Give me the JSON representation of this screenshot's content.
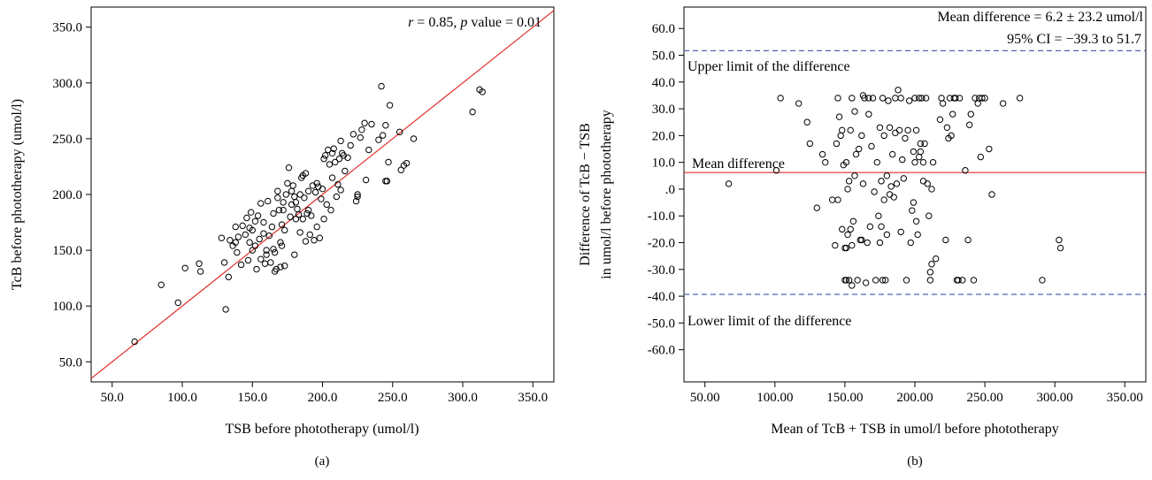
{
  "chart_data": [
    {
      "type": "scatter",
      "panel_label": "(a)",
      "annotation": "r = 0.85, p value = 0.01",
      "annotation_parts": {
        "r": "r",
        "r_rest": " = 0.85, ",
        "p": "p",
        "p_rest": " value = 0.01"
      },
      "xlabel": "TSB before phototherapy (umol/l)",
      "ylabel": "TcB before phototherapy (umol/l)",
      "xlim": [
        35,
        365
      ],
      "ylim": [
        32,
        368
      ],
      "x_ticks": [
        "50.0",
        "100.0",
        "150.0",
        "200.0",
        "250.0",
        "300.0",
        "350.0"
      ],
      "x_tick_values": [
        50,
        100,
        150,
        200,
        250,
        300,
        350
      ],
      "y_ticks": [
        "50.0",
        "100.0",
        "150.0",
        "200.0",
        "250.0",
        "300.0",
        "350.0"
      ],
      "y_tick_values": [
        50,
        100,
        150,
        200,
        250,
        300,
        350
      ],
      "reference_line": {
        "slope": 1.0,
        "intercept": 0,
        "color": "#e0302a"
      },
      "marker_color": "#000000",
      "points": [
        [
          66,
          68
        ],
        [
          85,
          119
        ],
        [
          97,
          103
        ],
        [
          102,
          134
        ],
        [
          112,
          138
        ],
        [
          113,
          131
        ],
        [
          128,
          161
        ],
        [
          130,
          139
        ],
        [
          131,
          97
        ],
        [
          133,
          126
        ],
        [
          134,
          159
        ],
        [
          136,
          154
        ],
        [
          138,
          157
        ],
        [
          138,
          171
        ],
        [
          139,
          148
        ],
        [
          140,
          162
        ],
        [
          142,
          137
        ],
        [
          143,
          172
        ],
        [
          145,
          164
        ],
        [
          146,
          179
        ],
        [
          147,
          141
        ],
        [
          148,
          157
        ],
        [
          148,
          170
        ],
        [
          149,
          184
        ],
        [
          150,
          150
        ],
        [
          150,
          168
        ],
        [
          152,
          154
        ],
        [
          152,
          176
        ],
        [
          153,
          133
        ],
        [
          154,
          181
        ],
        [
          155,
          160
        ],
        [
          156,
          142
        ],
        [
          156,
          192
        ],
        [
          158,
          165
        ],
        [
          158,
          175
        ],
        [
          159,
          138
        ],
        [
          160,
          150
        ],
        [
          160,
          146
        ],
        [
          161,
          194
        ],
        [
          162,
          163
        ],
        [
          163,
          139
        ],
        [
          164,
          171
        ],
        [
          165,
          151
        ],
        [
          165,
          183
        ],
        [
          166,
          131
        ],
        [
          166,
          148
        ],
        [
          167,
          133
        ],
        [
          168,
          197
        ],
        [
          168,
          203
        ],
        [
          169,
          186
        ],
        [
          170,
          135
        ],
        [
          170,
          157
        ],
        [
          171,
          154
        ],
        [
          171,
          173
        ],
        [
          172,
          186
        ],
        [
          172,
          193
        ],
        [
          173,
          136
        ],
        [
          173,
          168
        ],
        [
          174,
          200
        ],
        [
          175,
          210
        ],
        [
          176,
          224
        ],
        [
          177,
          180
        ],
        [
          178,
          191
        ],
        [
          178,
          203
        ],
        [
          179,
          208
        ],
        [
          180,
          146
        ],
        [
          180,
          198
        ],
        [
          181,
          193
        ],
        [
          181,
          178
        ],
        [
          182,
          187
        ],
        [
          183,
          182
        ],
        [
          184,
          166
        ],
        [
          184,
          200
        ],
        [
          185,
          215
        ],
        [
          186,
          178
        ],
        [
          186,
          217
        ],
        [
          187,
          197
        ],
        [
          188,
          219
        ],
        [
          188,
          158
        ],
        [
          189,
          183
        ],
        [
          190,
          186
        ],
        [
          190,
          203
        ],
        [
          191,
          164
        ],
        [
          192,
          181
        ],
        [
          193,
          208
        ],
        [
          194,
          159
        ],
        [
          195,
          202
        ],
        [
          196,
          210
        ],
        [
          196,
          171
        ],
        [
          197,
          207
        ],
        [
          198,
          161
        ],
        [
          199,
          196
        ],
        [
          200,
          205
        ],
        [
          201,
          232
        ],
        [
          201,
          178
        ],
        [
          202,
          235
        ],
        [
          203,
          191
        ],
        [
          204,
          240
        ],
        [
          205,
          227
        ],
        [
          206,
          186
        ],
        [
          207,
          215
        ],
        [
          207,
          237
        ],
        [
          208,
          241
        ],
        [
          209,
          229
        ],
        [
          210,
          198
        ],
        [
          211,
          209
        ],
        [
          212,
          232
        ],
        [
          213,
          248
        ],
        [
          213,
          204
        ],
        [
          214,
          237
        ],
        [
          215,
          235
        ],
        [
          216,
          221
        ],
        [
          218,
          233
        ],
        [
          220,
          244
        ],
        [
          222,
          254
        ],
        [
          224,
          194
        ],
        [
          225,
          198
        ],
        [
          225,
          200
        ],
        [
          227,
          251
        ],
        [
          228,
          258
        ],
        [
          230,
          264
        ],
        [
          231,
          213
        ],
        [
          233,
          240
        ],
        [
          235,
          263
        ],
        [
          240,
          249
        ],
        [
          242,
          297
        ],
        [
          243,
          253
        ],
        [
          245,
          212
        ],
        [
          245,
          262
        ],
        [
          246,
          212
        ],
        [
          247,
          229
        ],
        [
          248,
          280
        ],
        [
          255,
          256
        ],
        [
          256,
          222
        ],
        [
          258,
          226
        ],
        [
          260,
          228
        ],
        [
          265,
          250
        ],
        [
          307,
          274
        ],
        [
          312,
          294
        ],
        [
          314,
          292
        ]
      ]
    },
    {
      "type": "scatter",
      "panel_label": "(b)",
      "annotation_line1": "Mean difference = 6.2 ± 23.2 umol/l",
      "annotation_line2": "95% CI = −39.3 to 51.7",
      "xlabel": "Mean of TcB + TSB in umol/l before phototherapy",
      "ylabel_line1": "Difference of TcB − TSB",
      "ylabel_line2": "in umol/l before phototherapy",
      "xlim": [
        35,
        365
      ],
      "ylim": [
        -72,
        68
      ],
      "x_ticks": [
        "50.00",
        "100.00",
        "150.00",
        "200.00",
        "250.00",
        "300.00",
        "350.00"
      ],
      "x_tick_values": [
        50,
        100,
        150,
        200,
        250,
        300,
        350
      ],
      "y_ticks": [
        "60.0",
        "50.0",
        "40.0",
        "30.0",
        "20.0",
        "10.0",
        ".0",
        "-10.0",
        "-20.0",
        "-30.0",
        "-40.0",
        "-50.0",
        "-60.0"
      ],
      "y_tick_values": [
        60,
        50,
        40,
        30,
        20,
        10,
        0,
        -10,
        -20,
        -30,
        -40,
        -50,
        -60
      ],
      "mean_line": {
        "value": 6.2,
        "label": "Mean difference",
        "color": "#e0302a"
      },
      "upper_limit": {
        "value": 51.7,
        "label": "Upper limit of the difference",
        "color": "#5566aa"
      },
      "lower_limit": {
        "value": -39.3,
        "label": "Lower limit of the difference",
        "color": "#5566aa"
      },
      "marker_color": "#000000",
      "points": [
        [
          67,
          2
        ],
        [
          101,
          7
        ],
        [
          104,
          34
        ],
        [
          117,
          32
        ],
        [
          123,
          25
        ],
        [
          125,
          17
        ],
        [
          130,
          -7
        ],
        [
          134,
          13
        ],
        [
          136,
          10
        ],
        [
          141,
          -4
        ],
        [
          143,
          -21
        ],
        [
          144,
          17
        ],
        [
          145,
          34
        ],
        [
          145,
          -4
        ],
        [
          146,
          27
        ],
        [
          147,
          20
        ],
        [
          148,
          22
        ],
        [
          148,
          -15
        ],
        [
          149,
          9
        ],
        [
          150,
          -22
        ],
        [
          150,
          -34
        ],
        [
          151,
          -22
        ],
        [
          151,
          10
        ],
        [
          151,
          -34
        ],
        [
          152,
          0
        ],
        [
          152,
          -17
        ],
        [
          153,
          3
        ],
        [
          153,
          -34
        ],
        [
          154,
          22
        ],
        [
          154,
          -15
        ],
        [
          155,
          34
        ],
        [
          155,
          -21
        ],
        [
          155,
          -36
        ],
        [
          156,
          -12
        ],
        [
          157,
          29
        ],
        [
          157,
          5
        ],
        [
          158,
          13
        ],
        [
          159,
          -34
        ],
        [
          160,
          15
        ],
        [
          161,
          -19
        ],
        [
          162,
          20
        ],
        [
          162,
          -19
        ],
        [
          163,
          2
        ],
        [
          163,
          35
        ],
        [
          164,
          34
        ],
        [
          165,
          -35
        ],
        [
          166,
          -20
        ],
        [
          167,
          28
        ],
        [
          167,
          34
        ],
        [
          168,
          -14
        ],
        [
          169,
          16
        ],
        [
          170,
          34
        ],
        [
          171,
          -1
        ],
        [
          172,
          -34
        ],
        [
          173,
          10
        ],
        [
          174,
          -10
        ],
        [
          175,
          -20
        ],
        [
          175,
          23
        ],
        [
          176,
          3
        ],
        [
          176,
          -14
        ],
        [
          177,
          -34
        ],
        [
          177,
          34
        ],
        [
          178,
          20
        ],
        [
          178,
          -4
        ],
        [
          179,
          -34
        ],
        [
          180,
          5
        ],
        [
          180,
          -17
        ],
        [
          181,
          33
        ],
        [
          182,
          -2
        ],
        [
          182,
          23
        ],
        [
          183,
          1
        ],
        [
          184,
          13
        ],
        [
          185,
          -3
        ],
        [
          186,
          21
        ],
        [
          186,
          34
        ],
        [
          187,
          2
        ],
        [
          188,
          37
        ],
        [
          189,
          22
        ],
        [
          190,
          34
        ],
        [
          190,
          -16
        ],
        [
          191,
          11
        ],
        [
          192,
          4
        ],
        [
          193,
          19
        ],
        [
          194,
          -34
        ],
        [
          195,
          22
        ],
        [
          196,
          33
        ],
        [
          197,
          -20
        ],
        [
          198,
          -8
        ],
        [
          199,
          14
        ],
        [
          199,
          -5
        ],
        [
          200,
          34
        ],
        [
          200,
          10
        ],
        [
          201,
          22
        ],
        [
          201,
          -12
        ],
        [
          202,
          -17
        ],
        [
          203,
          34
        ],
        [
          203,
          12
        ],
        [
          204,
          17
        ],
        [
          204,
          14
        ],
        [
          205,
          34
        ],
        [
          206,
          3
        ],
        [
          206,
          10
        ],
        [
          207,
          17
        ],
        [
          208,
          34
        ],
        [
          209,
          2
        ],
        [
          210,
          -10
        ],
        [
          211,
          -31
        ],
        [
          211,
          -34
        ],
        [
          212,
          -28
        ],
        [
          212,
          0
        ],
        [
          213,
          10
        ],
        [
          215,
          -26
        ],
        [
          218,
          26
        ],
        [
          219,
          34
        ],
        [
          220,
          32
        ],
        [
          222,
          -19
        ],
        [
          223,
          23
        ],
        [
          224,
          19
        ],
        [
          225,
          34
        ],
        [
          226,
          20
        ],
        [
          227,
          28
        ],
        [
          228,
          34
        ],
        [
          229,
          34
        ],
        [
          230,
          -34
        ],
        [
          231,
          -34
        ],
        [
          232,
          34
        ],
        [
          234,
          -34
        ],
        [
          236,
          7
        ],
        [
          238,
          -19
        ],
        [
          239,
          24
        ],
        [
          240,
          28
        ],
        [
          242,
          -34
        ],
        [
          243,
          34
        ],
        [
          245,
          32
        ],
        [
          246,
          34
        ],
        [
          247,
          12
        ],
        [
          248,
          34
        ],
        [
          250,
          34
        ],
        [
          253,
          15
        ],
        [
          255,
          -2
        ],
        [
          263,
          32
        ],
        [
          275,
          34
        ],
        [
          291,
          -34
        ],
        [
          303,
          -19
        ],
        [
          304,
          -22
        ]
      ]
    }
  ]
}
